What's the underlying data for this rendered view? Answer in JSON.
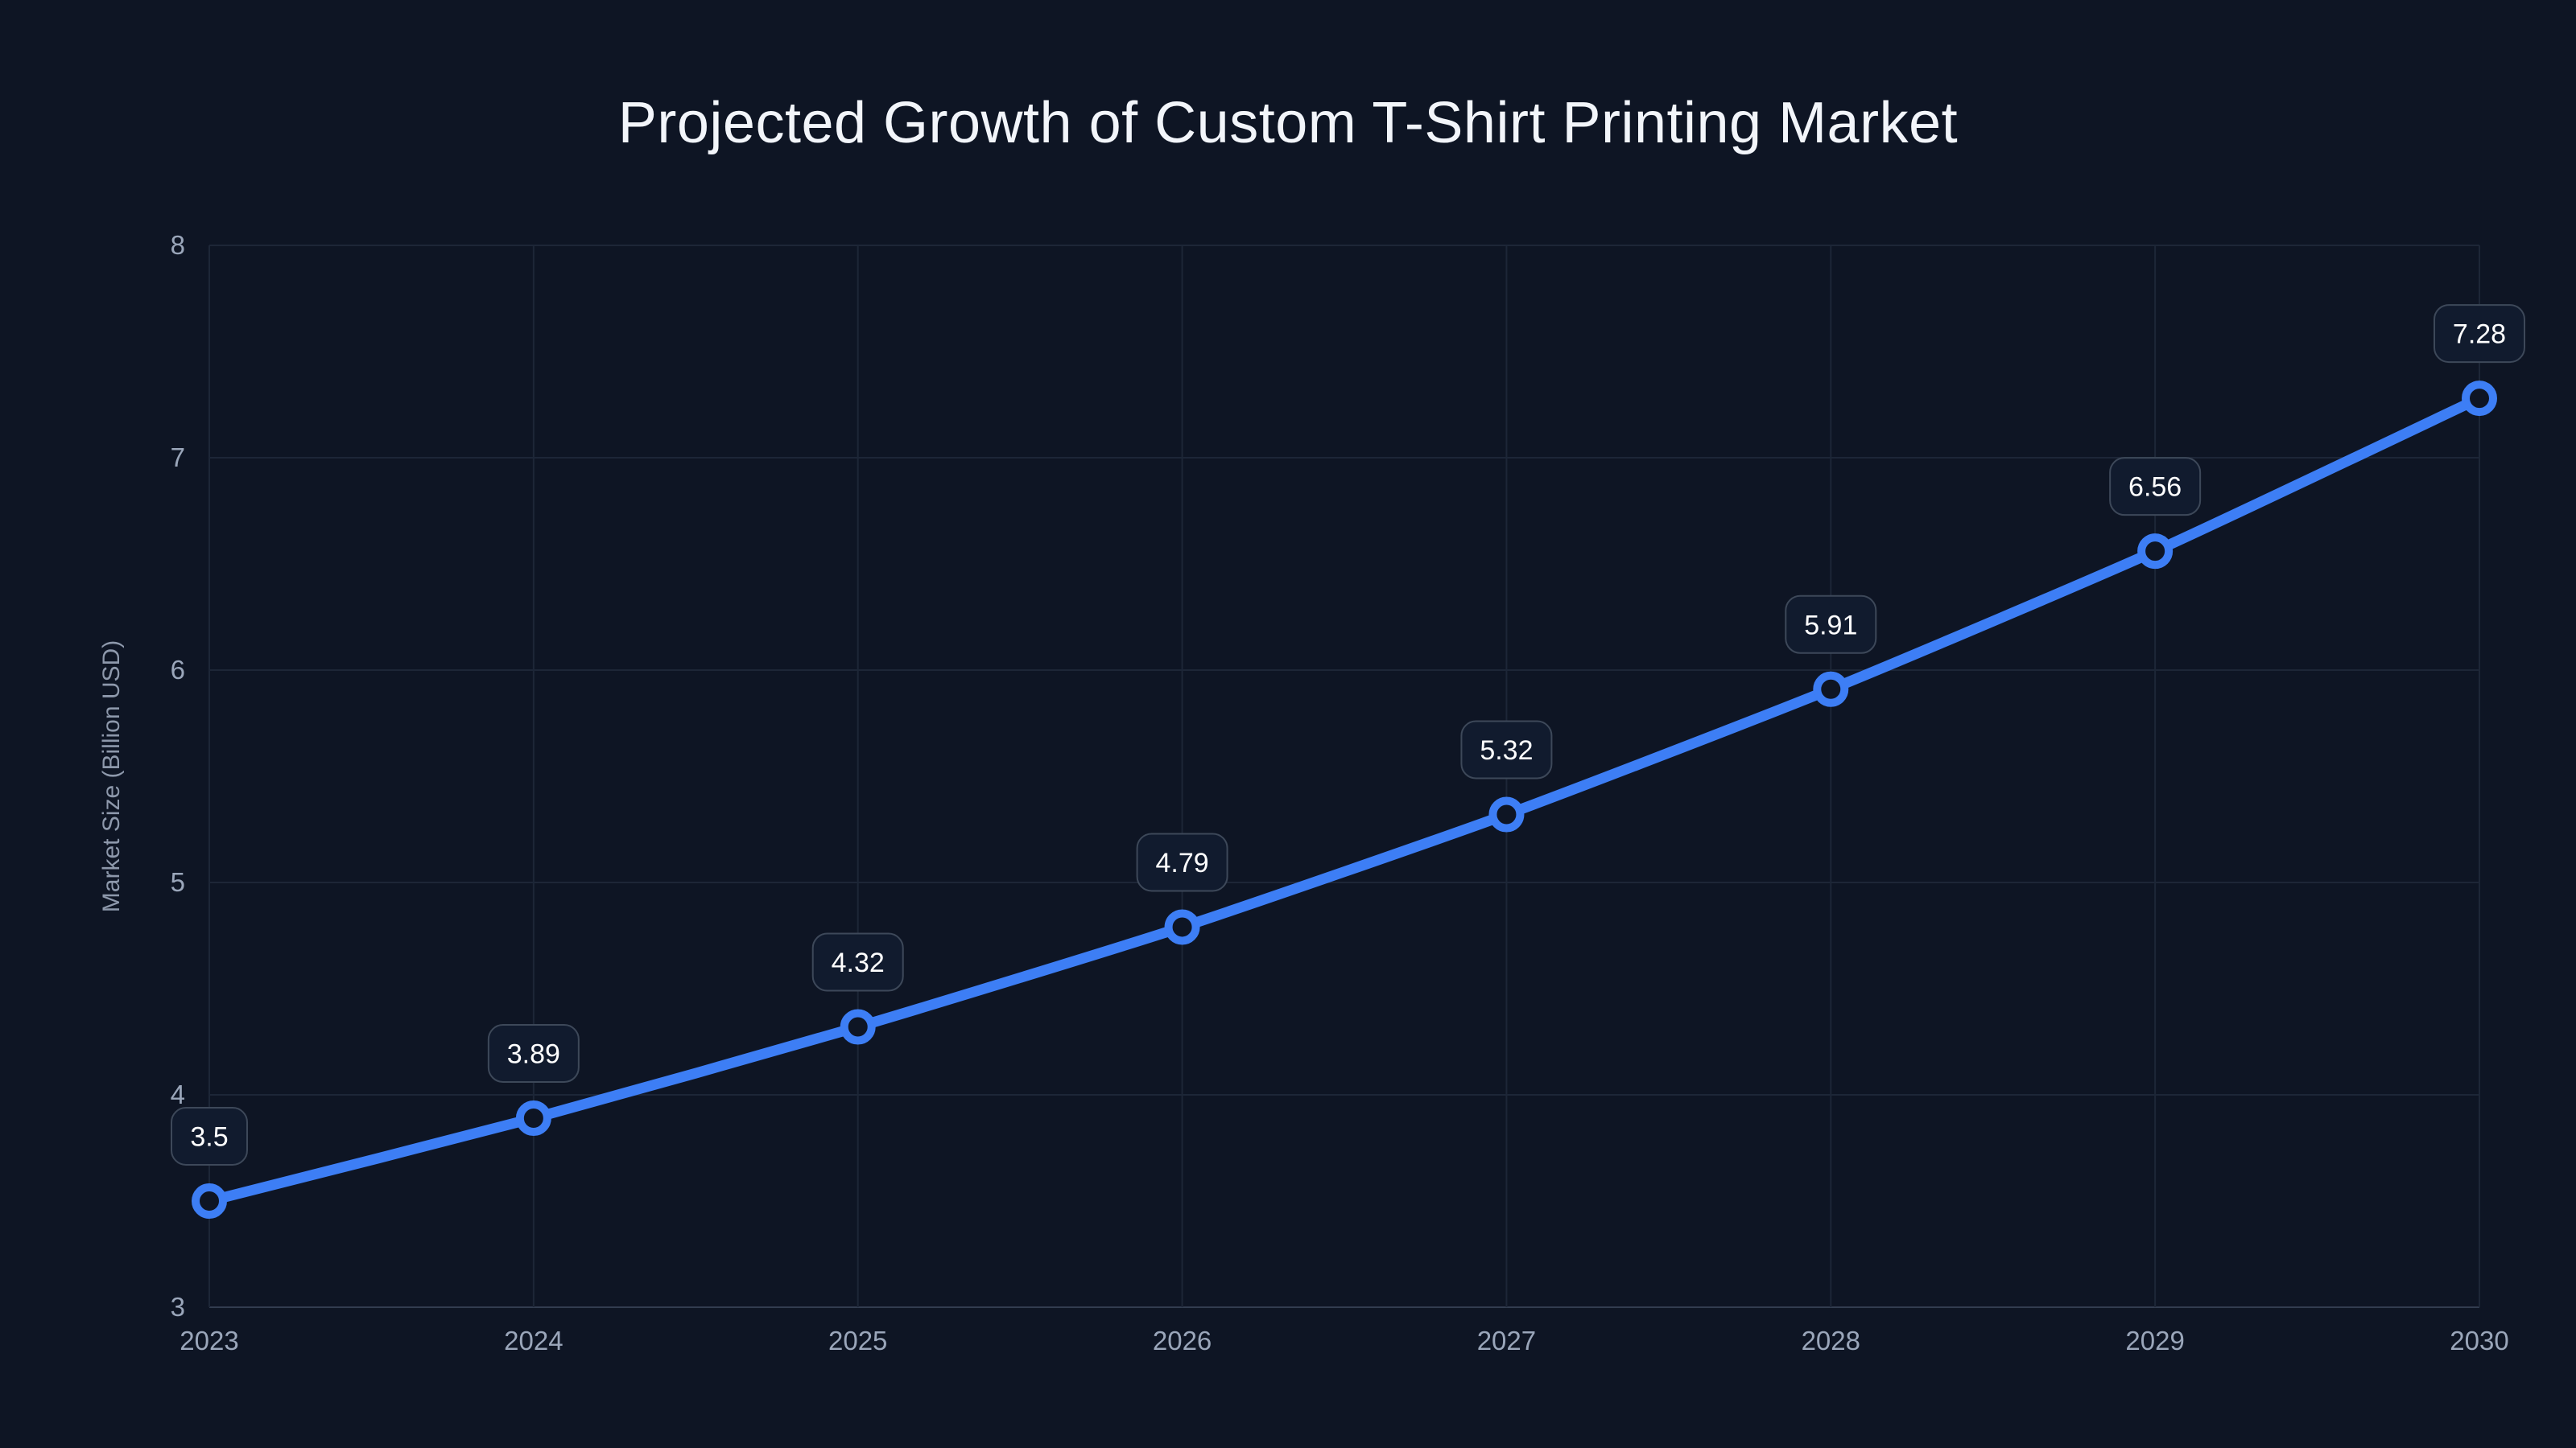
{
  "chart": {
    "title": "Projected Growth of Custom T-Shirt Printing Market",
    "colors": {
      "background": "#0e1524",
      "line": "#3d7ef5",
      "grid": "#1d2637",
      "axis_border": "#323c4f",
      "tick_text": "#9aa6ba",
      "axis_label_text": "#8d98ab",
      "chip_fill": "#111b2e",
      "chip_border": "#3d4859",
      "chip_text": "#ffffff",
      "title_text": "#f2f5fa"
    }
  },
  "chart_data": {
    "type": "line",
    "title": "Projected Growth of Custom T-Shirt Printing Market",
    "categories": [
      "2023",
      "2024",
      "2025",
      "2026",
      "2027",
      "2028",
      "2029",
      "2030"
    ],
    "values": [
      3.5,
      3.89,
      4.32,
      4.79,
      5.32,
      5.91,
      6.56,
      7.28
    ],
    "point_labels": [
      "3.5",
      "3.89",
      "4.32",
      "4.79",
      "5.32",
      "5.91",
      "6.56",
      "7.28"
    ],
    "xlabel": "",
    "ylabel": "Market Size (Billion USD)",
    "ylim": [
      3,
      8
    ],
    "yticks": [
      3,
      4,
      5,
      6,
      7,
      8
    ],
    "grid": true,
    "legend": false,
    "line_color": "#3d7ef5",
    "marker_style": "open-circle"
  }
}
